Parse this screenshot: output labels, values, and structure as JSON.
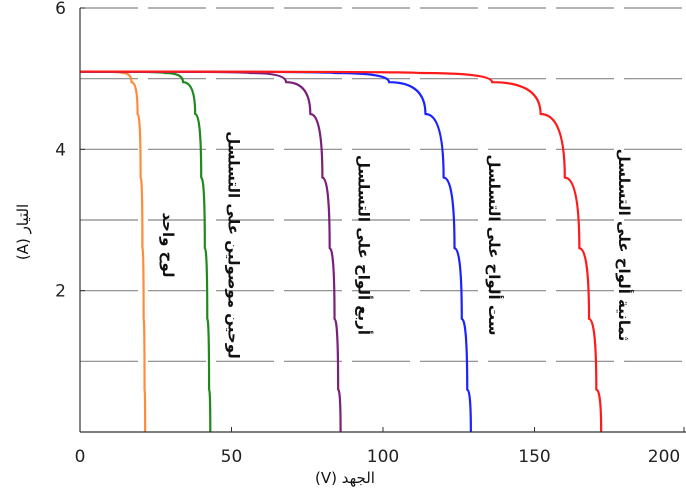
{
  "chart_data": {
    "type": "line",
    "xlabel": "الجهد (V)",
    "ylabel": "التيار (A)",
    "xlim": [
      0,
      200
    ],
    "ylim": [
      0,
      6
    ],
    "x_ticks": [
      "0",
      "50",
      "100",
      "150",
      "200"
    ],
    "y_ticks": [
      "2",
      "4",
      "6"
    ],
    "grid": "horizontal dashed",
    "series": [
      {
        "name": "لوح واحد",
        "color": "#ff8c3a",
        "x": [
          0,
          14,
          17,
          19,
          20,
          20.6,
          21,
          21.3,
          21.5
        ],
        "y": [
          5.1,
          5.08,
          4.95,
          4.5,
          3.6,
          2.6,
          1.6,
          0.6,
          0
        ]
      },
      {
        "name": "لوحين موصولين على التسلسل",
        "color": "#1e8a1e",
        "x": [
          0,
          28,
          34,
          38,
          40,
          41.2,
          42,
          42.6,
          43
        ],
        "y": [
          5.1,
          5.08,
          4.95,
          4.5,
          3.6,
          2.6,
          1.6,
          0.6,
          0
        ]
      },
      {
        "name": "أربع ألواح على التسلسل",
        "color": "#7a1f7a",
        "x": [
          0,
          56,
          68,
          76,
          80,
          82.4,
          84,
          85.2,
          86
        ]
      },
      {
        "name": "ست ألواح على التسلسل",
        "color": "#1a22ff",
        "x": [
          0,
          84,
          102,
          114,
          120,
          123.6,
          126,
          127.8,
          129
        ]
      },
      {
        "name": "ثمانية ألواح على التسلسل",
        "color": "#ff1a1a",
        "x": [
          0,
          112,
          136,
          152,
          160,
          164.8,
          168,
          170.4,
          172
        ]
      }
    ],
    "shared_y": [
      5.1,
      5.08,
      4.95,
      4.5,
      3.6,
      2.6,
      1.6,
      0.6,
      0
    ]
  }
}
